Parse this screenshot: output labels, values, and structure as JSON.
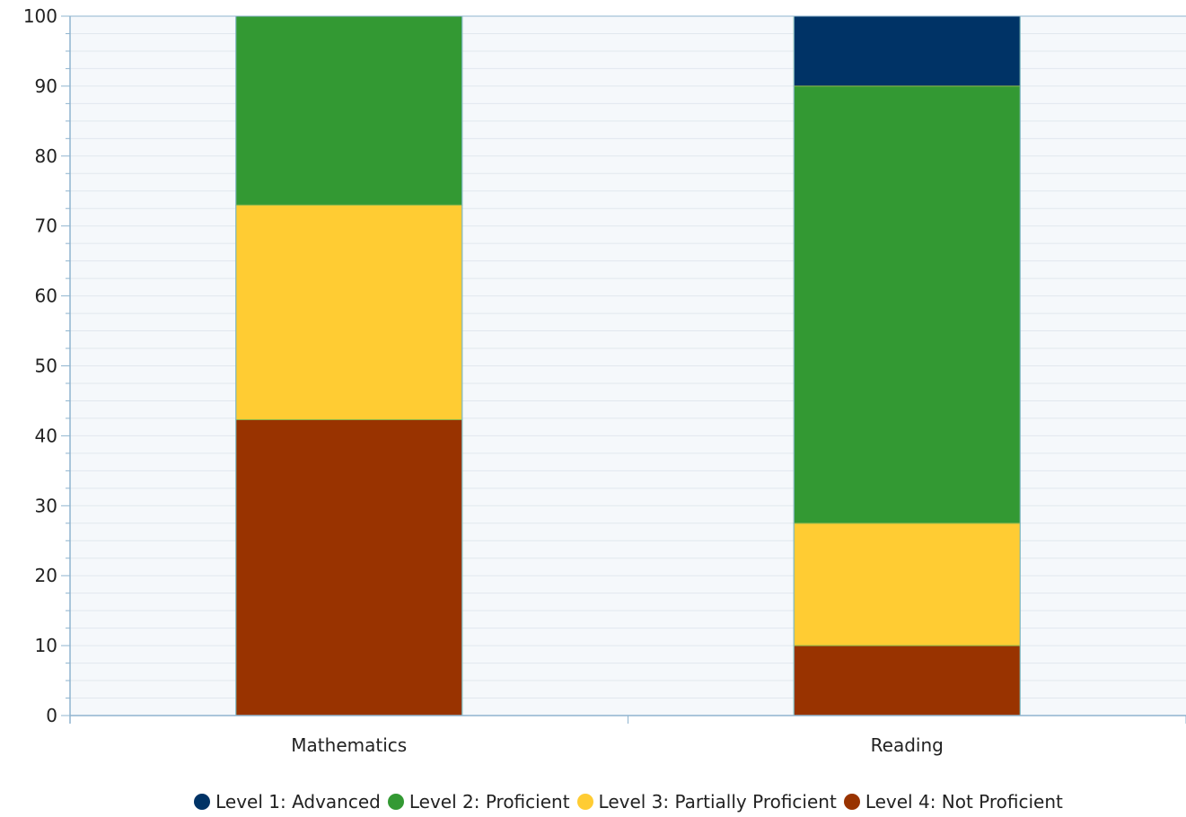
{
  "chart_data": {
    "type": "bar",
    "stacked": true,
    "categories": [
      "Mathematics",
      "Reading"
    ],
    "series": [
      {
        "name": "Level 4: Not Proficient",
        "color": "#993300",
        "values": [
          42.3,
          10.0
        ]
      },
      {
        "name": "Level 3: Partially Proficient",
        "color": "#FFCC33",
        "values": [
          30.7,
          17.5
        ]
      },
      {
        "name": "Level 2: Proficient",
        "color": "#339933",
        "values": [
          27.0,
          62.5
        ]
      },
      {
        "name": "Level 1: Advanced",
        "color": "#003366",
        "values": [
          0.0,
          10.0
        ]
      }
    ],
    "legend_order": [
      "Level 1: Advanced",
      "Level 2: Proficient",
      "Level 3: Partially Proficient",
      "Level 4: Not Proficient"
    ],
    "ylim": [
      0,
      100
    ],
    "yticks": [
      0,
      10,
      20,
      30,
      40,
      50,
      60,
      70,
      80,
      90,
      100
    ],
    "title": "",
    "xlabel": "",
    "ylabel": "",
    "grid": true,
    "legend_position": "bottom-center",
    "plot_background": "#F5F8FB",
    "grid_color": "#E1E7EE",
    "axis_color": "#8FB4CF"
  }
}
